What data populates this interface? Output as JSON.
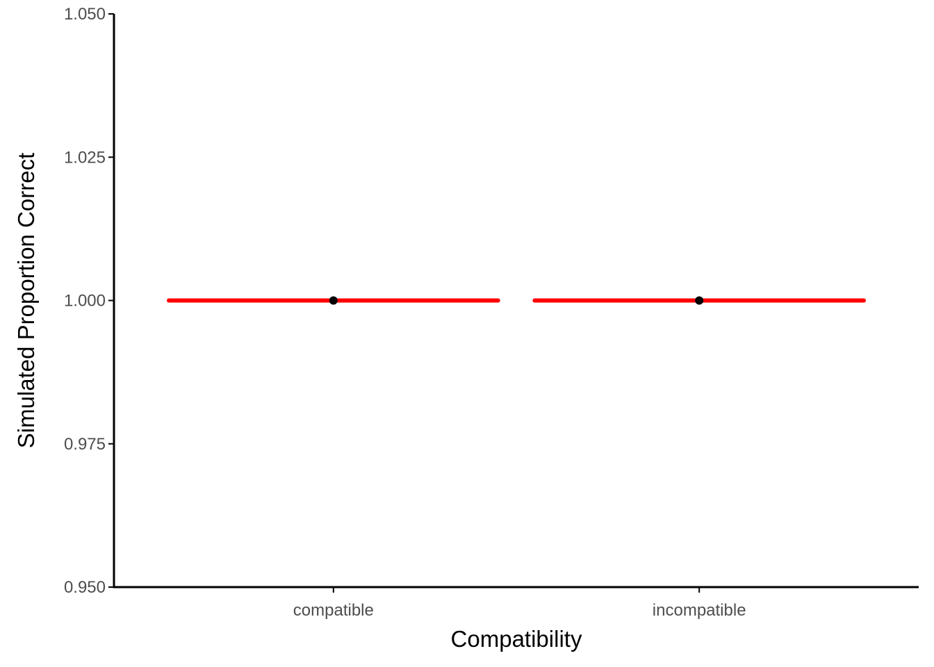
{
  "chart_data": {
    "type": "scatter",
    "title": "",
    "xlabel": "Compatibility",
    "ylabel": "Simulated Proportion Correct",
    "categories": [
      "compatible",
      "incompatible"
    ],
    "series": [
      {
        "marker": "point",
        "color": "#000000",
        "values": [
          1.0,
          1.0
        ]
      },
      {
        "marker": "horizontal-line",
        "color": "#ff0000",
        "values": [
          1.0,
          1.0
        ]
      }
    ],
    "ylim": [
      0.95,
      1.05
    ],
    "yticks": [
      0.95,
      0.975,
      1.0,
      1.025,
      1.05
    ],
    "ytick_labels": [
      "0.950",
      "0.975",
      "1.000",
      "1.025",
      "1.050"
    ],
    "grid": false,
    "legend": "none"
  }
}
